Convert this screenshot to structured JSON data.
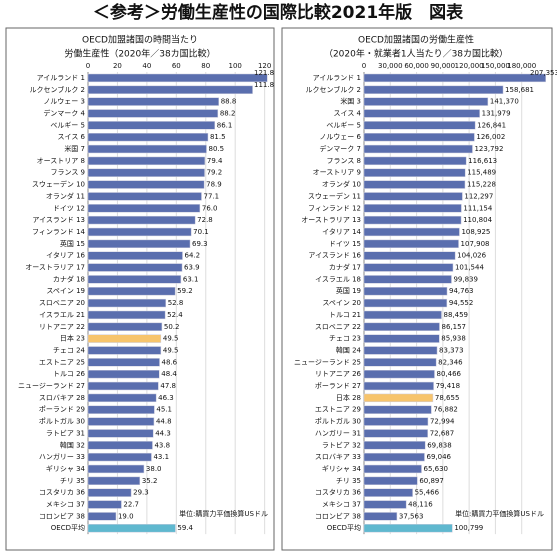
{
  "title": "＜参考＞労働生産性の国際比較2021年版　図表",
  "chart_data": [
    {
      "type": "bar",
      "orientation": "horizontal",
      "title": "OECD加盟諸国の時間当たり",
      "subtitle": "労働生産性（2020年／38カ国比較）",
      "note": "単位:購買力平価換算USドル",
      "categories": [
        "アイルランド 1",
        "ルクセンブルク 2",
        "ノルウェー 3",
        "デンマーク 4",
        "ベルギー 5",
        "スイス 6",
        "米国 7",
        "オーストリア 8",
        "フランス 9",
        "スウェーデン 10",
        "オランダ 11",
        "ドイツ 12",
        "アイスランド 13",
        "フィンランド 14",
        "英国 15",
        "イタリア 16",
        "オーストラリア 17",
        "カナダ 18",
        "スペイン 19",
        "スロベニア 20",
        "イスラエル 21",
        "リトアニア 22",
        "日本 23",
        "チェコ 24",
        "エストニア 25",
        "トルコ 26",
        "ニュージーランド 27",
        "スロバキア 28",
        "ポーランド 29",
        "ポルトガル 30",
        "ラトビア 31",
        "韓国 32",
        "ハンガリー 33",
        "ギリシャ 34",
        "チリ 35",
        "コスタリカ 36",
        "メキシコ 37",
        "コロンビア 38",
        "OECD平均"
      ],
      "values": [
        121.8,
        111.8,
        88.8,
        88.2,
        86.1,
        81.5,
        80.5,
        79.4,
        79.2,
        78.9,
        77.1,
        76,
        72.8,
        70.1,
        69.3,
        64.2,
        63.9,
        63.1,
        59.2,
        52.8,
        52.4,
        50.2,
        49.5,
        49.5,
        48.6,
        48.4,
        47.8,
        46.3,
        45.1,
        44.8,
        44.3,
        43.8,
        43.1,
        38,
        35.2,
        29.3,
        22.7,
        19,
        59.4
      ],
      "value_labels": [
        "121.8",
        "111.8",
        "88.8",
        "88.2",
        "86.1",
        "81.5",
        "80.5",
        "79.4",
        "79.2",
        "78.9",
        "77.1",
        "76.0",
        "72.8",
        "70.1",
        "69.3",
        "64.2",
        "63.9",
        "63.1",
        "59.2",
        "52.8",
        "52.4",
        "50.2",
        "49.5",
        "49.5",
        "48.6",
        "48.4",
        "47.8",
        "46.3",
        "45.1",
        "44.8",
        "44.3",
        "43.8",
        "43.1",
        "38.0",
        "35.2",
        "29.3",
        "22.7",
        "19.0",
        "59.4"
      ],
      "color": "#5a6eae",
      "colors": {
        "22": "#f7c46c",
        "38": "#5fb8cf"
      },
      "xlim": [
        0,
        125
      ],
      "xticks": [
        0,
        20,
        40,
        60,
        80,
        100,
        120
      ],
      "grid": true
    },
    {
      "type": "bar",
      "orientation": "horizontal",
      "title": "OECD加盟諸国の労働生産性",
      "subtitle": "（2020年・就業者1人当たり／38カ国比較）",
      "note": "単位:購買力平価換算USドル",
      "categories": [
        "アイルランド 1",
        "ルクセンブルク 2",
        "米国 3",
        "スイス 4",
        "ベルギー 5",
        "ノルウェー 6",
        "デンマーク 7",
        "フランス 8",
        "オーストリア 9",
        "オランダ 10",
        "スウェーデン 11",
        "フィンランド 12",
        "オーストラリア 13",
        "イタリア 14",
        "ドイツ 15",
        "アイスランド 16",
        "カナダ 17",
        "イスラエル 18",
        "英国 19",
        "スペイン 20",
        "トルコ 21",
        "スロベニア 22",
        "チェコ 23",
        "韓国 24",
        "ニュージーランド 25",
        "リトアニア 26",
        "ポーランド 27",
        "日本 28",
        "エストニア 29",
        "ポルトガル 30",
        "ハンガリー 31",
        "ラトビア 32",
        "スロバキア 33",
        "ギリシャ 34",
        "チリ 35",
        "コスタリカ 36",
        "メキシコ 37",
        "コロンビア 38",
        "OECD平均"
      ],
      "values": [
        207353,
        158681,
        141370,
        131979,
        126841,
        126002,
        123792,
        116613,
        115489,
        115228,
        112297,
        111154,
        110804,
        108925,
        107908,
        104026,
        101544,
        99839,
        94763,
        94552,
        88459,
        86157,
        85938,
        83373,
        82346,
        80466,
        79418,
        78655,
        76882,
        72994,
        72687,
        69838,
        69046,
        65630,
        60897,
        55466,
        48116,
        37563,
        100799
      ],
      "value_labels": [
        "207,353",
        "158,681",
        "141,370",
        "131,979",
        "126,841",
        "126,002",
        "123,792",
        "116,613",
        "115,489",
        "115,228",
        "112,297",
        "111,154",
        "110,804",
        "108,925",
        "107,908",
        "104,026",
        "101,544",
        "99,839",
        "94,763",
        "94,552",
        "88,459",
        "86,157",
        "85,938",
        "83,373",
        "82,346",
        "80,466",
        "79,418",
        "78,655",
        "76,882",
        "72,994",
        "72,687",
        "69,838",
        "69,046",
        "65,630",
        "60,897",
        "55,466",
        "48,116",
        "37,563",
        "100,799"
      ],
      "color": "#5a6eae",
      "colors": {
        "27": "#f7c46c",
        "38": "#5fb8cf"
      },
      "xlim": [
        0,
        210000
      ],
      "xticks": [
        0,
        {
          "value": 30000,
          "label": "30,000"
        },
        {
          "value": 60000,
          "label": "60,000"
        },
        {
          "value": 90000,
          "label": "90,000"
        },
        {
          "value": 120000,
          "label": "120,000"
        },
        {
          "value": 150000,
          "label": "150,000"
        },
        {
          "value": 180000,
          "label": "180,000"
        }
      ],
      "grid": true
    }
  ]
}
